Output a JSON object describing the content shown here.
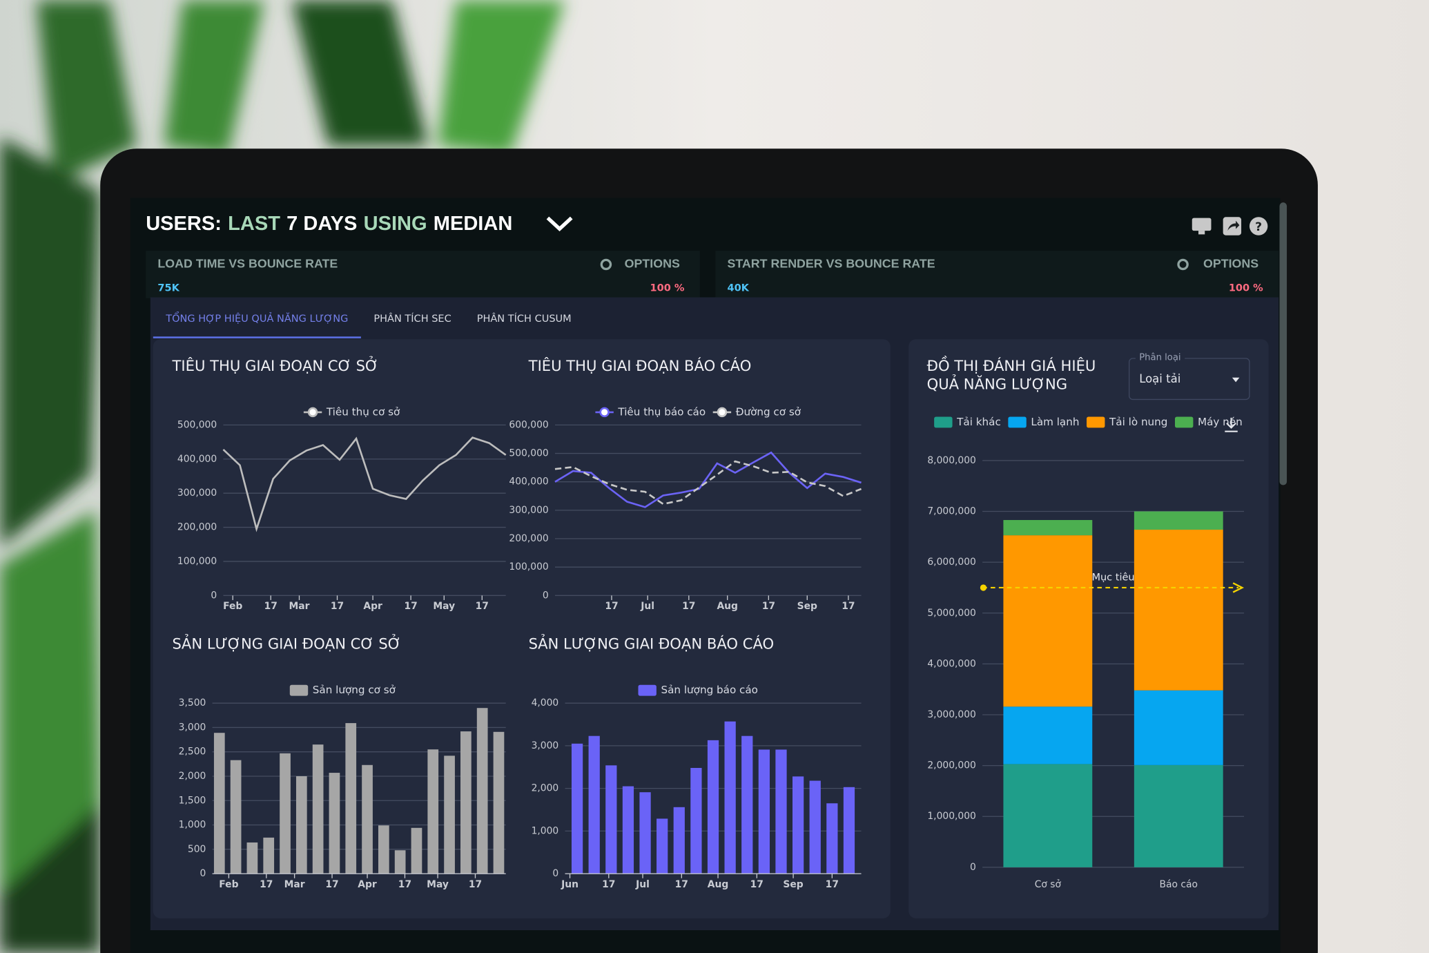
{
  "header": {
    "title": [
      "USERS:",
      "LAST",
      "7 DAYS",
      "USING",
      "MEDIAN"
    ]
  },
  "panels": [
    {
      "title": "LOAD TIME VS BOUNCE RATE",
      "options": "OPTIONS",
      "left_value": "75K",
      "right_value": "100 %"
    },
    {
      "title": "START RENDER VS BOUNCE RATE",
      "options": "OPTIONS",
      "left_value": "40K",
      "right_value": "100 %"
    }
  ],
  "tabs": [
    {
      "label": "TỔNG HỢP HIỆU QUẢ NĂNG LƯỢNG",
      "active": true
    },
    {
      "label": "PHÂN TÍCH SEC",
      "active": false
    },
    {
      "label": "PHÂN TÍCH CUSUM",
      "active": false
    }
  ],
  "selector": {
    "label": "Phân loại",
    "value": "Loại tải"
  },
  "chart_data": [
    {
      "type": "line",
      "title": "TIÊU THỤ GIAI ĐOẠN CƠ SỞ",
      "x": [
        -4,
        3,
        10,
        17,
        24,
        31,
        38,
        45,
        52,
        59,
        66,
        73,
        80,
        87,
        94,
        101,
        108,
        115
      ],
      "xlim": [
        -4,
        115
      ],
      "xticks": [
        {
          "value": 0,
          "label": "Feb"
        },
        {
          "value": 16,
          "label": "17"
        },
        {
          "value": 28,
          "label": "Mar"
        },
        {
          "value": 44,
          "label": "17"
        },
        {
          "value": 59,
          "label": "Apr"
        },
        {
          "value": 75,
          "label": "17"
        },
        {
          "value": 89,
          "label": "May"
        },
        {
          "value": 105,
          "label": "17"
        }
      ],
      "ylim": [
        0,
        500000
      ],
      "yticks": [
        0,
        {
          "value": 100000,
          "label": "100,000"
        },
        {
          "value": 200000,
          "label": "200,000"
        },
        {
          "value": 300000,
          "label": "300,000"
        },
        {
          "value": 400000,
          "label": "400,000"
        },
        {
          "value": 500000,
          "label": "500,000"
        }
      ],
      "grid": true,
      "series": [
        {
          "name": "Tiêu thụ cơ sở",
          "color": "#bdbdbd",
          "values": [
            428000,
            382000,
            195000,
            342000,
            396000,
            425000,
            441000,
            398000,
            460000,
            313000,
            294000,
            283000,
            337000,
            382000,
            412000,
            463000,
            447000,
            412000
          ]
        }
      ]
    },
    {
      "type": "line",
      "title": "TIÊU THỤ GIAI ĐOẠN BÁO CÁO",
      "x": [
        -6,
        1,
        8,
        15,
        22,
        29,
        36,
        43,
        50,
        57,
        64,
        71,
        78,
        85,
        92,
        99,
        106,
        113
      ],
      "xlim": [
        -6,
        113
      ],
      "xticks": [
        {
          "value": 16,
          "label": "17"
        },
        {
          "value": 30,
          "label": "Jul"
        },
        {
          "value": 46,
          "label": "17"
        },
        {
          "value": 61,
          "label": "Aug"
        },
        {
          "value": 77,
          "label": "17"
        },
        {
          "value": 92,
          "label": "Sep"
        },
        {
          "value": 108,
          "label": "17"
        }
      ],
      "ylim": [
        0,
        600000
      ],
      "yticks": [
        0,
        {
          "value": 100000,
          "label": "100,000"
        },
        {
          "value": 200000,
          "label": "200,000"
        },
        {
          "value": 300000,
          "label": "300,000"
        },
        {
          "value": 400000,
          "label": "400,000"
        },
        {
          "value": 500000,
          "label": "500,000"
        },
        {
          "value": 600000,
          "label": "600,000"
        }
      ],
      "grid": true,
      "series": [
        {
          "name": "Tiêu thụ báo cáo",
          "color": "#6b63f5",
          "values": [
            400000,
            438000,
            432000,
            378000,
            330000,
            311000,
            352000,
            362000,
            375000,
            465000,
            432000,
            468000,
            503000,
            432000,
            378000,
            429000,
            417000,
            397000
          ]
        },
        {
          "name": "Đường cơ sở",
          "color": "#c8c8c8",
          "dash": true,
          "values": [
            445000,
            452000,
            420000,
            392000,
            372000,
            365000,
            322000,
            335000,
            380000,
            425000,
            472000,
            455000,
            432000,
            435000,
            398000,
            385000,
            350000,
            375000
          ]
        }
      ]
    },
    {
      "type": "bar",
      "title": "SẢN LƯỢNG GIAI ĐOẠN CƠ SỞ",
      "x": [
        -4,
        3,
        10,
        17,
        24,
        31,
        38,
        45,
        52,
        59,
        66,
        73,
        80,
        87,
        94,
        101,
        108,
        115
      ],
      "xlim": [
        -7,
        118
      ],
      "xticks": [
        {
          "value": 0,
          "label": "Feb"
        },
        {
          "value": 16,
          "label": "17"
        },
        {
          "value": 28,
          "label": "Mar"
        },
        {
          "value": 44,
          "label": "17"
        },
        {
          "value": 59,
          "label": "Apr"
        },
        {
          "value": 75,
          "label": "17"
        },
        {
          "value": 89,
          "label": "May"
        },
        {
          "value": 105,
          "label": "17"
        }
      ],
      "ylim": [
        0,
        3500
      ],
      "yticks": [
        0,
        500,
        {
          "value": 1000,
          "label": "1,000"
        },
        {
          "value": 1500,
          "label": "1,500"
        },
        {
          "value": 2000,
          "label": "2,000"
        },
        {
          "value": 2500,
          "label": "2,500"
        },
        {
          "value": 3000,
          "label": "3,000"
        },
        {
          "value": 3500,
          "label": "3,500"
        }
      ],
      "grid": true,
      "series": [
        {
          "name": "Sản lượng cơ sở",
          "color": "#a6a6a6",
          "values": [
            2890,
            2330,
            640,
            740,
            2470,
            2000,
            2650,
            2070,
            3090,
            2230,
            990,
            480,
            940,
            2550,
            2420,
            2920,
            3400,
            2910
          ]
        }
      ]
    },
    {
      "type": "bar",
      "title": "SẢN LƯỢNG GIAI ĐOẠN BÁO CÁO",
      "x": [
        3,
        10,
        17,
        24,
        31,
        38,
        45,
        52,
        59,
        66,
        73,
        80,
        87,
        94,
        101,
        108,
        115
      ],
      "xlim": [
        -2,
        120
      ],
      "xticks": [
        {
          "value": 0,
          "label": "Jun"
        },
        {
          "value": 16,
          "label": "17"
        },
        {
          "value": 30,
          "label": "Jul"
        },
        {
          "value": 46,
          "label": "17"
        },
        {
          "value": 61,
          "label": "Aug"
        },
        {
          "value": 77,
          "label": "17"
        },
        {
          "value": 92,
          "label": "Sep"
        },
        {
          "value": 108,
          "label": "17"
        }
      ],
      "ylim": [
        0,
        4000
      ],
      "yticks": [
        0,
        {
          "value": 1000,
          "label": "1,000"
        },
        {
          "value": 2000,
          "label": "2,000"
        },
        {
          "value": 3000,
          "label": "3,000"
        },
        {
          "value": 4000,
          "label": "4,000"
        }
      ],
      "grid": true,
      "series": [
        {
          "name": "Sản lượng báo cáo",
          "color": "#6a63f7",
          "values": [
            3050,
            3230,
            2540,
            2050,
            1910,
            1290,
            1560,
            2480,
            3130,
            3570,
            3230,
            2910,
            2910,
            2280,
            2180,
            1650,
            2030
          ]
        }
      ]
    },
    {
      "type": "stacked_bar",
      "title": "ĐỒ THỊ ĐÁNH GIÁ HIỆU QUẢ NĂNG LƯỢNG",
      "categories": [
        "Cơ sở",
        "Báo cáo"
      ],
      "ylim": [
        0,
        8000000
      ],
      "yticks": [
        0,
        {
          "value": 1000000,
          "label": "1,000,000"
        },
        {
          "value": 2000000,
          "label": "2,000,000"
        },
        {
          "value": 3000000,
          "label": "3,000,000"
        },
        {
          "value": 4000000,
          "label": "4,000,000"
        },
        {
          "value": 5000000,
          "label": "5,000,000"
        },
        {
          "value": 6000000,
          "label": "6,000,000"
        },
        {
          "value": 7000000,
          "label": "7,000,000"
        },
        {
          "value": 8000000,
          "label": "8,000,000"
        }
      ],
      "grid": true,
      "target": {
        "label": "Mục tiêu",
        "value": 5500000,
        "color": "#f5d300"
      },
      "series": [
        {
          "name": "Tải khác",
          "color": "#1f9e8a",
          "values": [
            2030000,
            2010000
          ]
        },
        {
          "name": "Làm lạnh",
          "color": "#06a6f0",
          "values": [
            1130000,
            1470000
          ]
        },
        {
          "name": "Tải lò nung",
          "color": "#ff9800",
          "values": [
            3370000,
            3160000
          ]
        },
        {
          "name": "Máy nén",
          "color": "#4caf50",
          "values": [
            300000,
            360000
          ]
        }
      ]
    }
  ]
}
